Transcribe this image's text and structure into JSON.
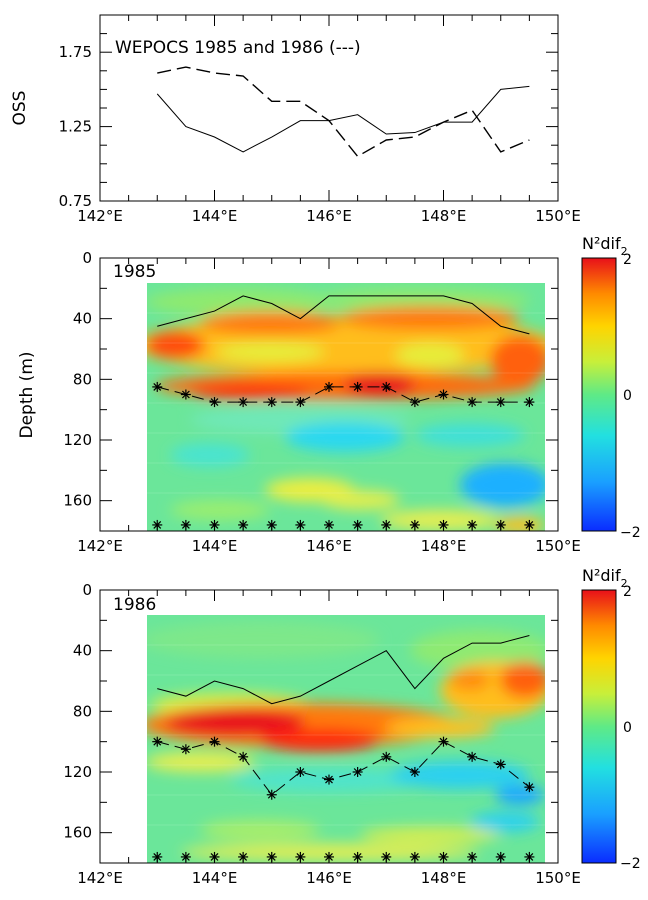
{
  "figure": {
    "background": "#ffffff"
  },
  "chart_data": [
    {
      "type": "line",
      "title": "WEPOCS 1985 and 1986 (---)",
      "ylabel": "OSS",
      "xlim": [
        142,
        150
      ],
      "ylim": [
        0.75,
        2.0
      ],
      "x_ticks": [
        "142°E",
        "144°E",
        "146°E",
        "148°E",
        "150°E"
      ],
      "y_ticks": [
        "0.75",
        "1.25",
        "1.75"
      ],
      "series": [
        {
          "style": "solid",
          "x": [
            143,
            143.5,
            144,
            144.5,
            145,
            145.5,
            146,
            146.5,
            147,
            147.5,
            148,
            148.5,
            149,
            149.5
          ],
          "values": [
            1.47,
            1.25,
            1.18,
            1.08,
            1.18,
            1.29,
            1.29,
            1.33,
            1.2,
            1.21,
            1.28,
            1.28,
            1.5,
            1.52
          ]
        },
        {
          "style": "dashed",
          "x": [
            143,
            143.5,
            144,
            144.5,
            145,
            145.5,
            146,
            146.5,
            147,
            147.5,
            148,
            148.5,
            149,
            149.5
          ],
          "values": [
            1.61,
            1.65,
            1.61,
            1.59,
            1.42,
            1.42,
            1.29,
            1.05,
            1.16,
            1.18,
            1.28,
            1.36,
            1.08,
            1.16
          ]
        }
      ]
    },
    {
      "type": "heatmap",
      "label": "1985",
      "ylabel": "Depth (m)",
      "xlim": [
        142,
        150
      ],
      "ylim": [
        180,
        0
      ],
      "x_ticks": [
        "142°E",
        "144°E",
        "146°E",
        "148°E",
        "150°E"
      ],
      "y_ticks": [
        "0",
        "40",
        "80",
        "120",
        "160"
      ],
      "colorbar": {
        "label": "N²dif",
        "subscript": "2",
        "ticks": [
          "2",
          "0",
          "−2"
        ],
        "range": [
          -2,
          2
        ]
      },
      "mixed_layer_depth": {
        "x": [
          143,
          143.5,
          144,
          144.5,
          145,
          145.5,
          146,
          146.5,
          147,
          147.5,
          148,
          148.5,
          149,
          149.5
        ],
        "values": [
          45,
          40,
          35,
          25,
          30,
          40,
          25,
          25,
          25,
          25,
          25,
          30,
          45,
          50
        ]
      },
      "thermocline_depth": {
        "x": [
          143,
          143.5,
          144,
          144.5,
          145,
          145.5,
          146,
          146.5,
          147,
          147.5,
          148,
          148.5,
          149,
          149.5
        ],
        "values": [
          85,
          90,
          95,
          95,
          95,
          95,
          85,
          85,
          85,
          95,
          90,
          95,
          95,
          95
        ]
      },
      "station_markers_depth": 176
    },
    {
      "type": "heatmap",
      "label": "1986",
      "xlim": [
        142,
        150
      ],
      "ylim": [
        180,
        0
      ],
      "x_ticks": [
        "142°E",
        "144°E",
        "146°E",
        "148°E",
        "150°E"
      ],
      "y_ticks": [
        "0",
        "40",
        "80",
        "120",
        "160"
      ],
      "colorbar": {
        "label": "N²dif",
        "subscript": "2",
        "ticks": [
          "2",
          "0",
          "−2"
        ],
        "range": [
          -2,
          2
        ]
      },
      "mixed_layer_depth": {
        "x": [
          143,
          143.5,
          144,
          144.5,
          145,
          145.5,
          146,
          146.5,
          147,
          147.5,
          148,
          148.5,
          149,
          149.5
        ],
        "values": [
          65,
          70,
          60,
          65,
          75,
          70,
          60,
          50,
          40,
          65,
          45,
          35,
          35,
          30
        ]
      },
      "thermocline_depth": {
        "x": [
          143,
          143.5,
          144,
          144.5,
          145,
          145.5,
          146,
          146.5,
          147,
          147.5,
          148,
          148.5,
          149,
          149.5
        ],
        "values": [
          100,
          105,
          100,
          110,
          135,
          120,
          125,
          120,
          110,
          120,
          100,
          110,
          115,
          130
        ]
      },
      "station_markers_depth": 176
    }
  ]
}
